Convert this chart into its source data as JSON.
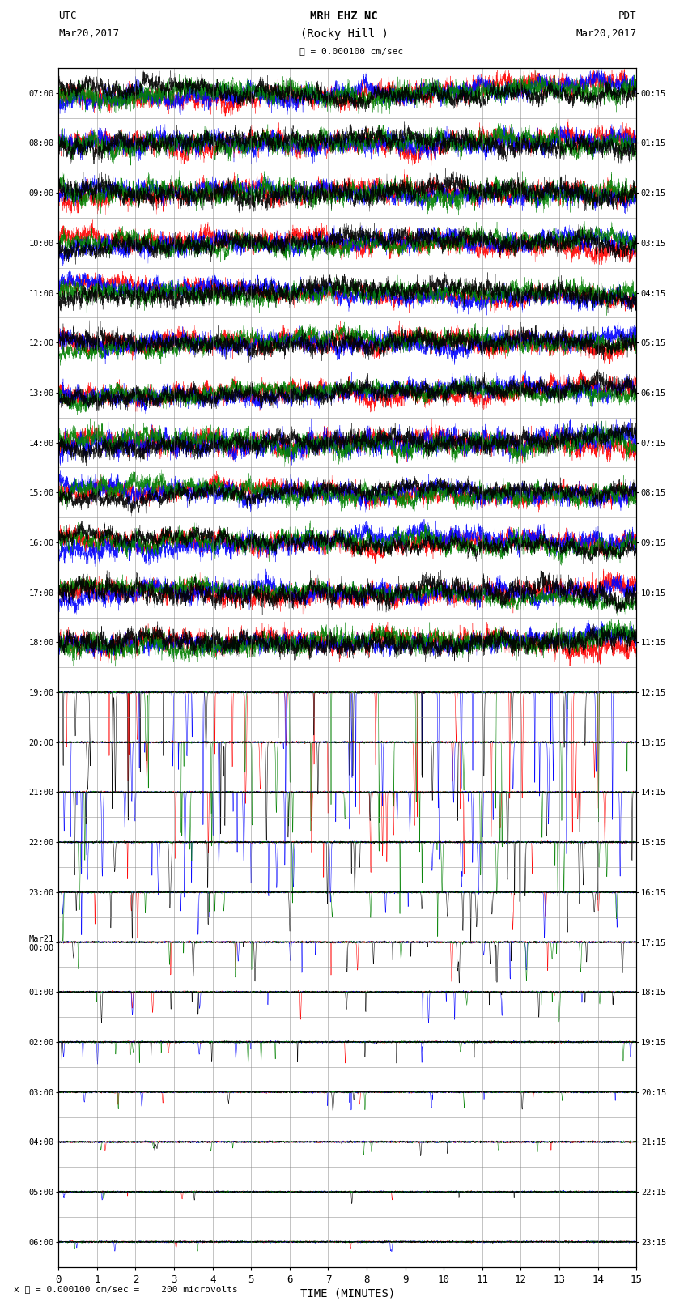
{
  "title_line1": "MRH EHZ NC",
  "title_line2": "(Rocky Hill )",
  "scale_label": "= 0.000100 cm/sec",
  "left_header": "UTC\nMar20,2017",
  "right_header": "PDT\nMar20,2017",
  "bottom_label": "TIME (MINUTES)",
  "footer_label": "= 0.000100 cm/sec =    200 microvolts",
  "footer_scale_char": "x",
  "utc_times_left": [
    "07:00",
    "08:00",
    "09:00",
    "10:00",
    "11:00",
    "12:00",
    "13:00",
    "14:00",
    "15:00",
    "16:00",
    "17:00",
    "18:00",
    "19:00",
    "20:00",
    "21:00",
    "22:00",
    "23:00",
    "Mar21\n00:00",
    "01:00",
    "02:00",
    "03:00",
    "04:00",
    "05:00",
    "06:00"
  ],
  "pdt_times_right": [
    "00:15",
    "01:15",
    "02:15",
    "03:15",
    "04:15",
    "05:15",
    "06:15",
    "07:15",
    "08:15",
    "09:15",
    "10:15",
    "11:15",
    "12:15",
    "13:15",
    "14:15",
    "15:15",
    "16:15",
    "17:15",
    "18:15",
    "19:15",
    "20:15",
    "21:15",
    "22:15",
    "23:15"
  ],
  "n_rows": 24,
  "x_min": 0,
  "x_max": 15,
  "x_ticks": [
    0,
    1,
    2,
    3,
    4,
    5,
    6,
    7,
    8,
    9,
    10,
    11,
    12,
    13,
    14,
    15
  ],
  "colors": [
    "red",
    "blue",
    "green",
    "black"
  ],
  "bg_color": "white",
  "plot_bg": "white",
  "grid_color": "#888888",
  "fig_width": 8.5,
  "fig_height": 16.13,
  "dpi": 100,
  "noisy_rows": 12,
  "noisy_amplitude": 0.48,
  "n_points_noisy": 6000,
  "n_points_quiet": 3000
}
